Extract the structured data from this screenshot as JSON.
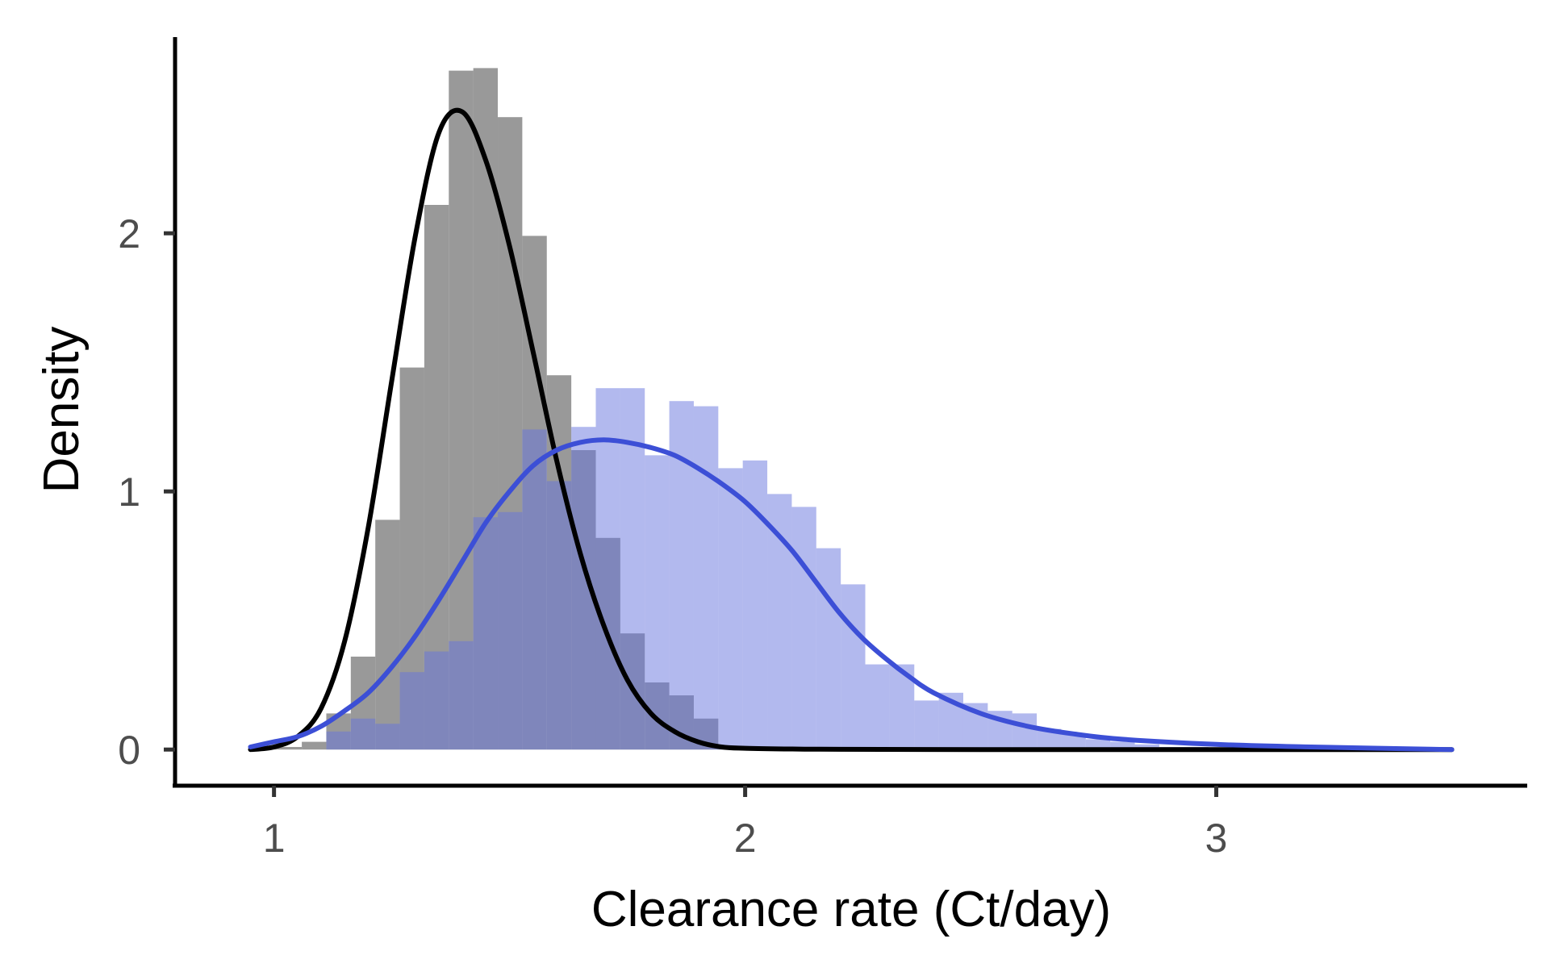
{
  "chart_data": {
    "type": "histogram",
    "title": "",
    "xlabel": "Clearance rate (Ct/day)",
    "ylabel": "Density",
    "xlim": [
      0.79,
      3.66
    ],
    "ylim": [
      -0.14,
      2.76
    ],
    "x_ticks": [
      {
        "value": 1,
        "label": "1"
      },
      {
        "value": 2,
        "label": "2"
      },
      {
        "value": 3,
        "label": "3"
      }
    ],
    "y_ticks": [
      {
        "value": 0,
        "label": "0"
      },
      {
        "value": 1,
        "label": "1"
      },
      {
        "value": 2,
        "label": "2"
      }
    ],
    "grid": false,
    "legend": "none",
    "bin_width": 0.052,
    "series": [
      {
        "color": "#808080",
        "opacity": 0.8,
        "line_color": "#000000",
        "bins": [
          {
            "x_start": 0.955,
            "density": 0.01
          },
          {
            "x_start": 1.007,
            "density": 0.01
          },
          {
            "x_start": 1.059,
            "density": 0.03
          },
          {
            "x_start": 1.111,
            "density": 0.14
          },
          {
            "x_start": 1.163,
            "density": 0.36
          },
          {
            "x_start": 1.215,
            "density": 0.89
          },
          {
            "x_start": 1.267,
            "density": 1.48
          },
          {
            "x_start": 1.319,
            "density": 2.11
          },
          {
            "x_start": 1.371,
            "density": 2.63
          },
          {
            "x_start": 1.423,
            "density": 2.64
          },
          {
            "x_start": 1.475,
            "density": 2.45
          },
          {
            "x_start": 1.527,
            "density": 1.99
          },
          {
            "x_start": 1.579,
            "density": 1.45
          },
          {
            "x_start": 1.631,
            "density": 1.16
          },
          {
            "x_start": 1.683,
            "density": 0.82
          },
          {
            "x_start": 1.735,
            "density": 0.45
          },
          {
            "x_start": 1.787,
            "density": 0.26
          },
          {
            "x_start": 1.839,
            "density": 0.21
          },
          {
            "x_start": 1.891,
            "density": 0.12
          },
          {
            "x_start": 1.943,
            "density": 0.01
          },
          {
            "x_start": 1.995,
            "density": 0.0
          }
        ],
        "density_curve": {
          "x": [
            0.95,
            1.0,
            1.05,
            1.1,
            1.15,
            1.2,
            1.25,
            1.3,
            1.35,
            1.4,
            1.45,
            1.5,
            1.55,
            1.6,
            1.65,
            1.7,
            1.75,
            1.8,
            1.85,
            1.9,
            1.95,
            2.0,
            2.1,
            2.2,
            2.5,
            3.0,
            3.5
          ],
          "y": [
            0.0,
            0.01,
            0.05,
            0.16,
            0.42,
            0.86,
            1.43,
            1.99,
            2.39,
            2.47,
            2.28,
            1.95,
            1.54,
            1.12,
            0.76,
            0.48,
            0.27,
            0.14,
            0.07,
            0.03,
            0.01,
            0.005,
            0.002,
            0.001,
            0.0,
            0.0,
            0.0
          ]
        }
      },
      {
        "color": "#6674dd",
        "opacity": 0.5,
        "line_color": "#3c4fd6",
        "bins": [
          {
            "x_start": 1.111,
            "density": 0.07
          },
          {
            "x_start": 1.163,
            "density": 0.12
          },
          {
            "x_start": 1.215,
            "density": 0.1
          },
          {
            "x_start": 1.267,
            "density": 0.3
          },
          {
            "x_start": 1.319,
            "density": 0.38
          },
          {
            "x_start": 1.371,
            "density": 0.42
          },
          {
            "x_start": 1.423,
            "density": 0.9
          },
          {
            "x_start": 1.475,
            "density": 0.92
          },
          {
            "x_start": 1.527,
            "density": 1.24
          },
          {
            "x_start": 1.579,
            "density": 1.04
          },
          {
            "x_start": 1.631,
            "density": 1.25
          },
          {
            "x_start": 1.683,
            "density": 1.4
          },
          {
            "x_start": 1.735,
            "density": 1.4
          },
          {
            "x_start": 1.787,
            "density": 1.14
          },
          {
            "x_start": 1.839,
            "density": 1.35
          },
          {
            "x_start": 1.891,
            "density": 1.33
          },
          {
            "x_start": 1.943,
            "density": 1.09
          },
          {
            "x_start": 1.995,
            "density": 1.12
          },
          {
            "x_start": 2.047,
            "density": 0.99
          },
          {
            "x_start": 2.099,
            "density": 0.94
          },
          {
            "x_start": 2.151,
            "density": 0.78
          },
          {
            "x_start": 2.203,
            "density": 0.64
          },
          {
            "x_start": 2.255,
            "density": 0.33
          },
          {
            "x_start": 2.307,
            "density": 0.33
          },
          {
            "x_start": 2.359,
            "density": 0.19
          },
          {
            "x_start": 2.411,
            "density": 0.22
          },
          {
            "x_start": 2.463,
            "density": 0.18
          },
          {
            "x_start": 2.515,
            "density": 0.15
          },
          {
            "x_start": 2.567,
            "density": 0.14
          },
          {
            "x_start": 2.619,
            "density": 0.08
          },
          {
            "x_start": 2.671,
            "density": 0.06
          },
          {
            "x_start": 2.723,
            "density": 0.04
          },
          {
            "x_start": 2.775,
            "density": 0.03
          },
          {
            "x_start": 2.827,
            "density": 0.02
          },
          {
            "x_start": 2.879,
            "density": 0.01
          },
          {
            "x_start": 2.931,
            "density": 0.01
          }
        ],
        "density_curve": {
          "x": [
            0.95,
            1.0,
            1.05,
            1.1,
            1.15,
            1.2,
            1.25,
            1.3,
            1.35,
            1.4,
            1.45,
            1.5,
            1.55,
            1.6,
            1.65,
            1.7,
            1.75,
            1.8,
            1.85,
            1.9,
            1.95,
            2.0,
            2.05,
            2.1,
            2.15,
            2.2,
            2.25,
            2.3,
            2.35,
            2.4,
            2.5,
            2.6,
            2.7,
            2.8,
            3.0,
            3.2,
            3.5
          ],
          "y": [
            0.01,
            0.03,
            0.05,
            0.09,
            0.15,
            0.22,
            0.32,
            0.44,
            0.58,
            0.73,
            0.88,
            1.0,
            1.1,
            1.16,
            1.19,
            1.2,
            1.19,
            1.17,
            1.14,
            1.09,
            1.03,
            0.96,
            0.87,
            0.77,
            0.65,
            0.53,
            0.43,
            0.35,
            0.28,
            0.22,
            0.14,
            0.09,
            0.06,
            0.04,
            0.02,
            0.01,
            0.0
          ]
        }
      }
    ]
  }
}
